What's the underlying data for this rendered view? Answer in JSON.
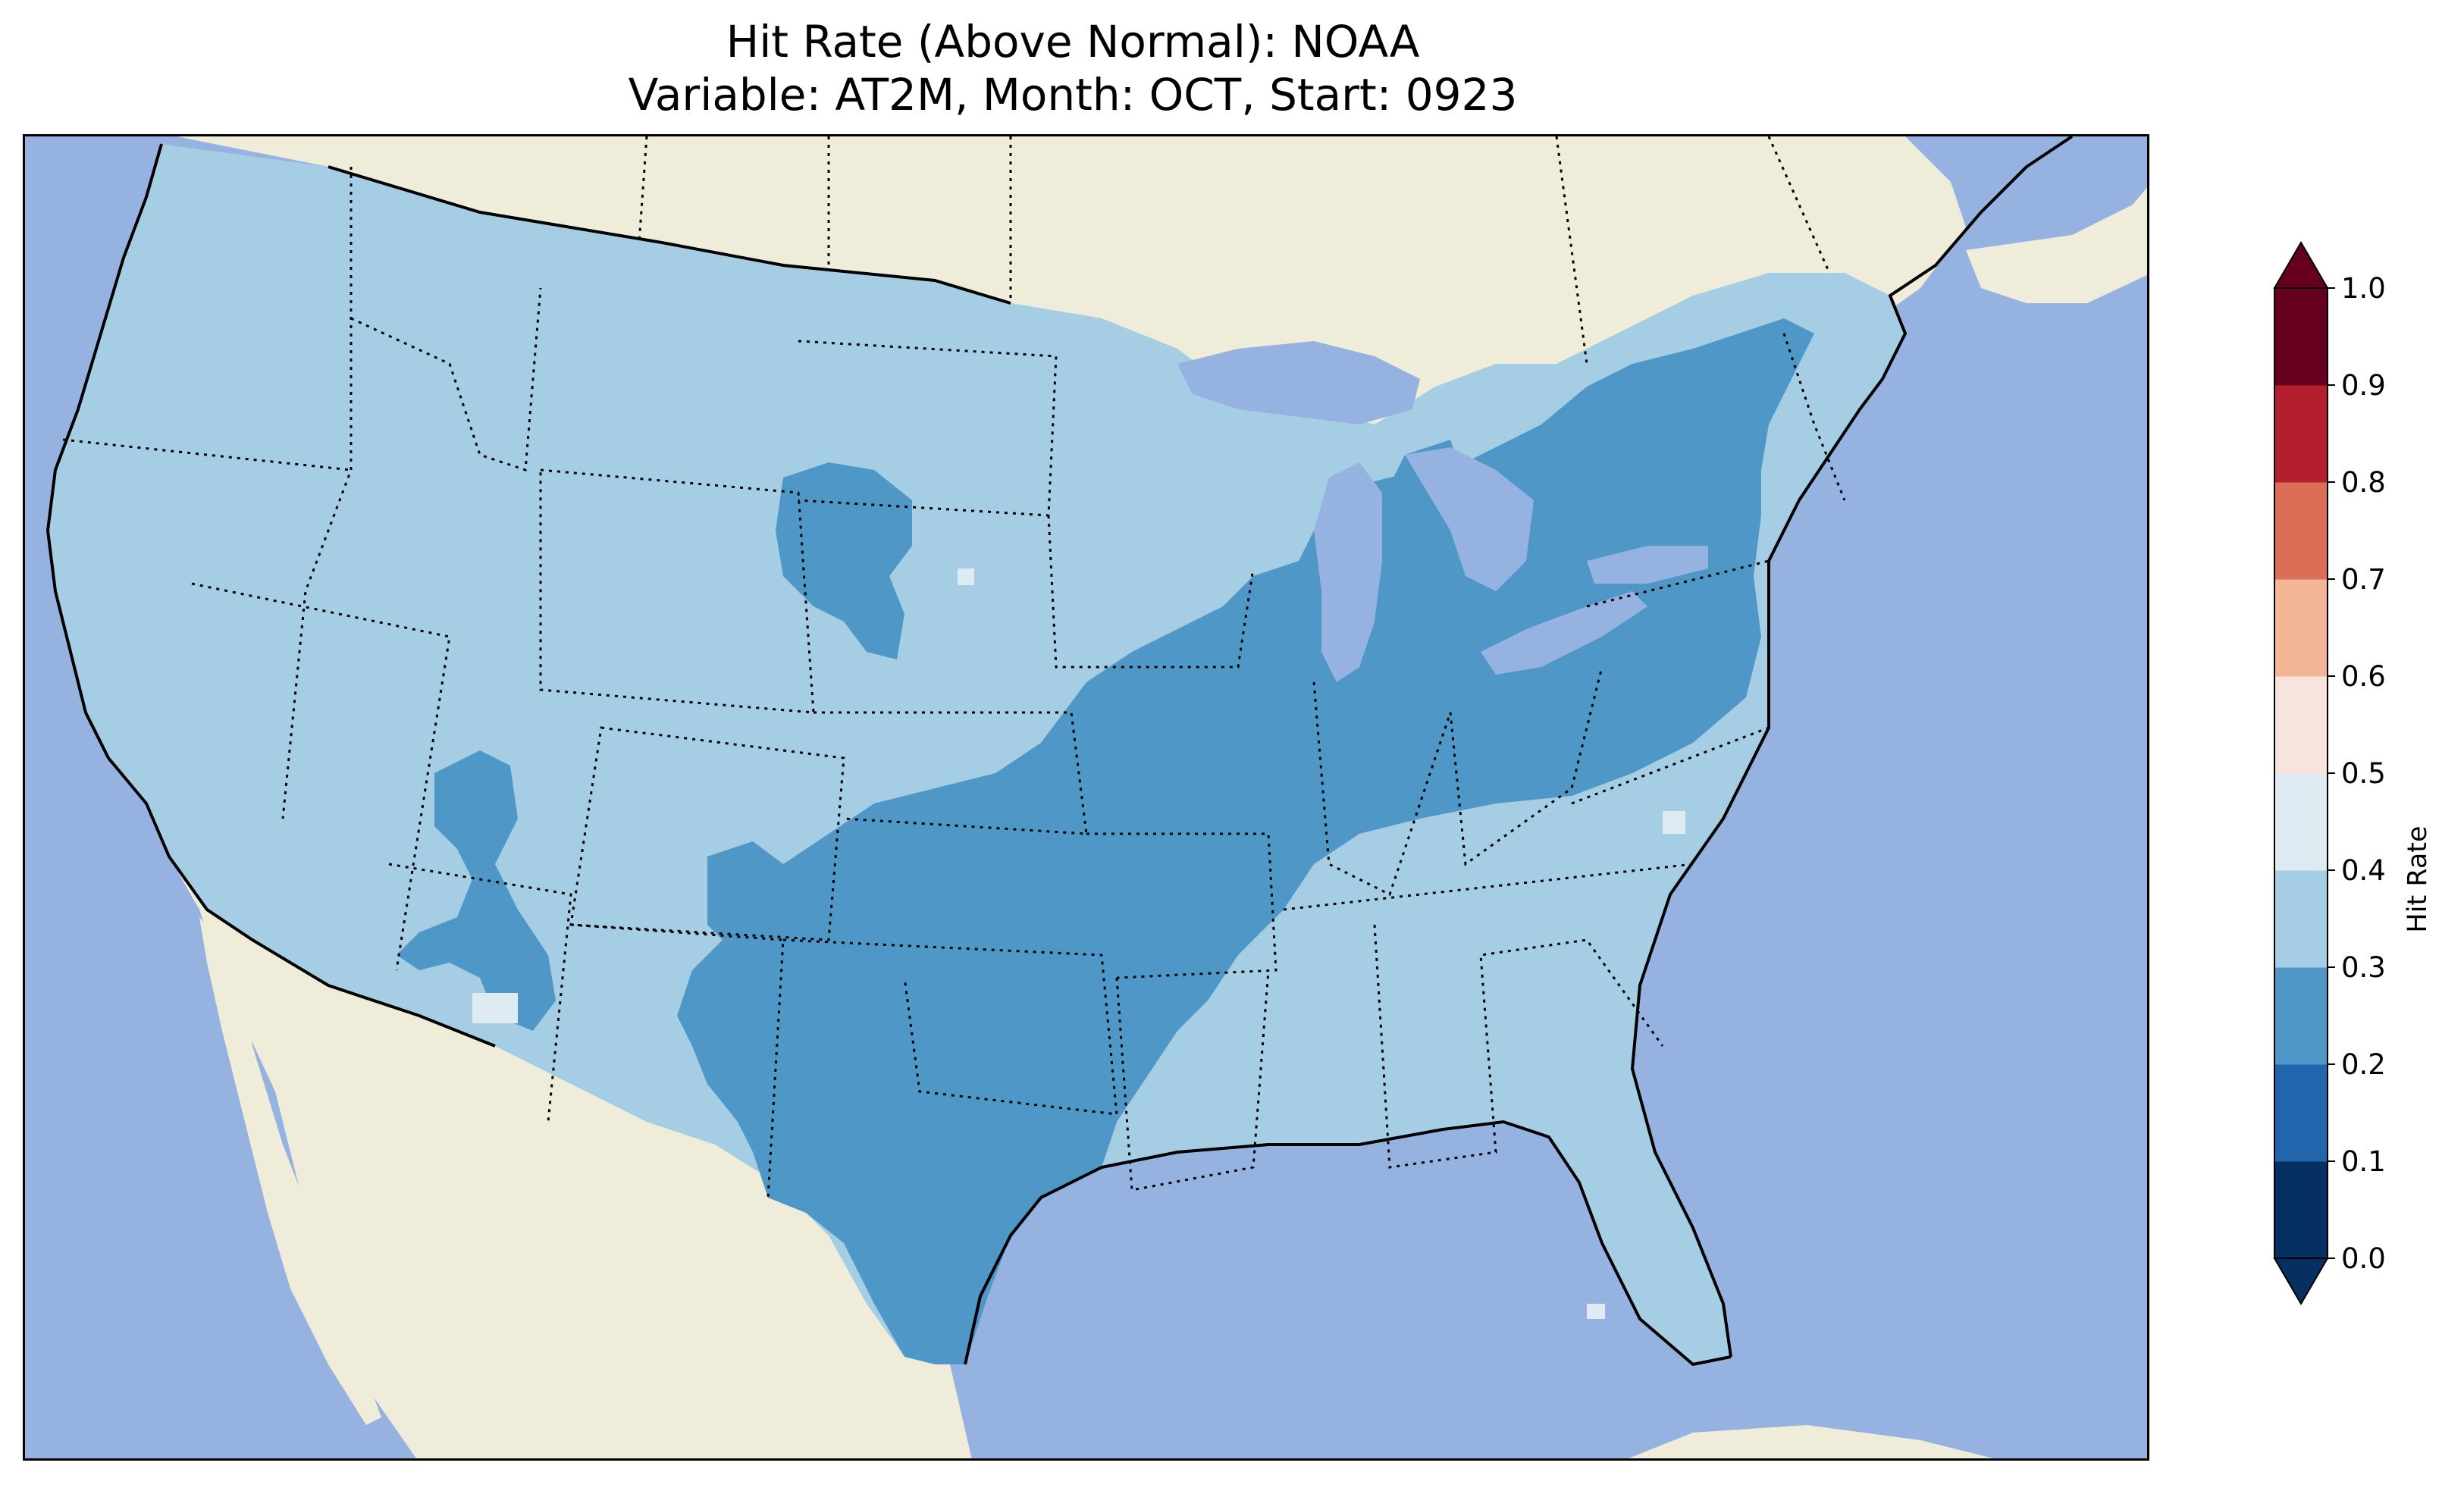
{
  "title_line1": "Hit Rate (Above Normal): NOAA",
  "title_line2": "Variable: AT2M, Month: OCT, Start: 0923",
  "colorbar": {
    "label": "Hit Rate",
    "ticks": [
      "0.0",
      "0.1",
      "0.2",
      "0.3",
      "0.4",
      "0.5",
      "0.6",
      "0.7",
      "0.8",
      "0.9",
      "1.0"
    ],
    "colors": [
      "#053061",
      "#2166ac",
      "#4f97c6",
      "#a5cde3",
      "#deebf2",
      "#f7e4dc",
      "#f4b596",
      "#dc6e57",
      "#b31f2f",
      "#67001f"
    ]
  },
  "map_colors": {
    "ocean": "#95b2e0",
    "land": "#efedda",
    "lakes": "#95b2e0",
    "level_0_3_to_0_4": "#a5cde3",
    "level_0_2_to_0_3": "#4f97c6",
    "level_0_4_to_0_5": "#deebf2"
  },
  "map_regions": {
    "higher_band": "Hit rate 0.3–0.4 (most of the West, Plains, Upper Midwest, Southeast, Florida)",
    "lower_band": "Hit rate 0.2–0.3 (Texas, Oklahoma, Arkansas, Ohio Valley, Mid-Atlantic, New England interior)"
  }
}
